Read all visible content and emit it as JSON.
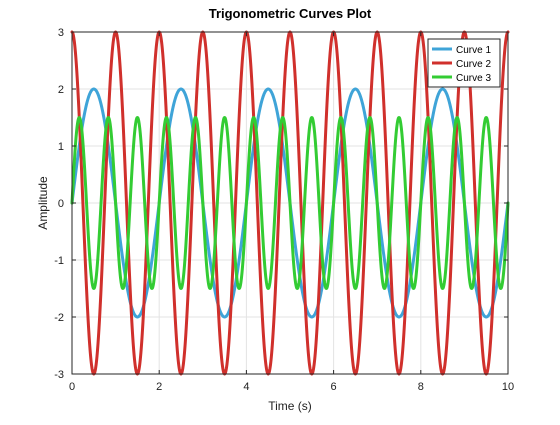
{
  "chart_data": {
    "type": "line",
    "title": "Trigonometric Curves Plot",
    "xlabel": "Time (s)",
    "ylabel": "Amplitude",
    "xlim": [
      0,
      10
    ],
    "ylim": [
      -3,
      3
    ],
    "xticks": [
      0,
      2,
      4,
      6,
      8,
      10
    ],
    "yticks": [
      -3,
      -2,
      -1,
      0,
      1,
      2,
      3
    ],
    "grid": true,
    "legend_position": "top-right",
    "series": [
      {
        "name": "Curve 1",
        "function": "sin",
        "amplitude": 2,
        "frequency_hz": 0.5,
        "color": "#3fa4d8"
      },
      {
        "name": "Curve 2",
        "function": "cos",
        "amplitude": 3,
        "frequency_hz": 1.0,
        "color": "#d0302c"
      },
      {
        "name": "Curve 3",
        "function": "sin",
        "amplitude": 1.5,
        "frequency_hz": 1.5,
        "color": "#33cc33"
      }
    ]
  }
}
